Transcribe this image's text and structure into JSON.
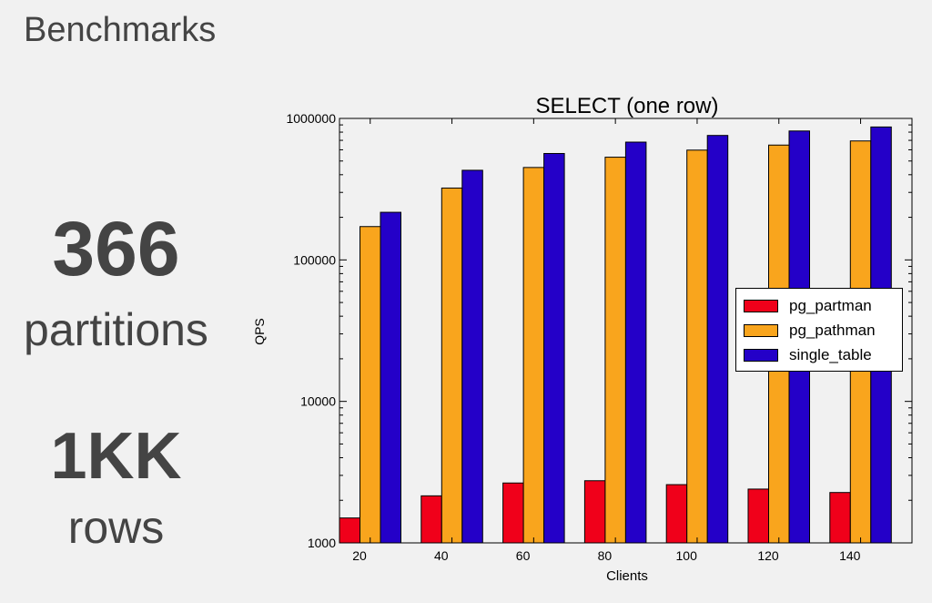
{
  "slide": {
    "title": "Benchmarks",
    "stat1_number": "366",
    "stat1_unit": "partitions",
    "stat2_number": "1KK",
    "stat2_unit": "rows"
  },
  "chart_data": {
    "type": "bar",
    "title": "SELECT (one row)",
    "xlabel": "Clients",
    "ylabel": "QPS",
    "yscale": "log",
    "ylim": [
      1000,
      1000000
    ],
    "yticks": [
      "1000",
      "10000",
      "100000",
      "1000000"
    ],
    "categories": [
      "20",
      "40",
      "60",
      "80",
      "100",
      "120",
      "140"
    ],
    "series": [
      {
        "name": "pg_partman",
        "color": "#f0001a",
        "values": [
          1500,
          2150,
          2650,
          2750,
          2580,
          2400,
          2270
        ]
      },
      {
        "name": "pg_pathman",
        "color": "#f9a51d",
        "values": [
          172000,
          322000,
          450000,
          532000,
          597000,
          648000,
          693000
        ]
      },
      {
        "name": "single_table",
        "color": "#2400c8",
        "values": [
          217000,
          430000,
          565000,
          680000,
          758000,
          815000,
          870000
        ]
      }
    ],
    "legend_position": "center-right",
    "grid": false
  }
}
